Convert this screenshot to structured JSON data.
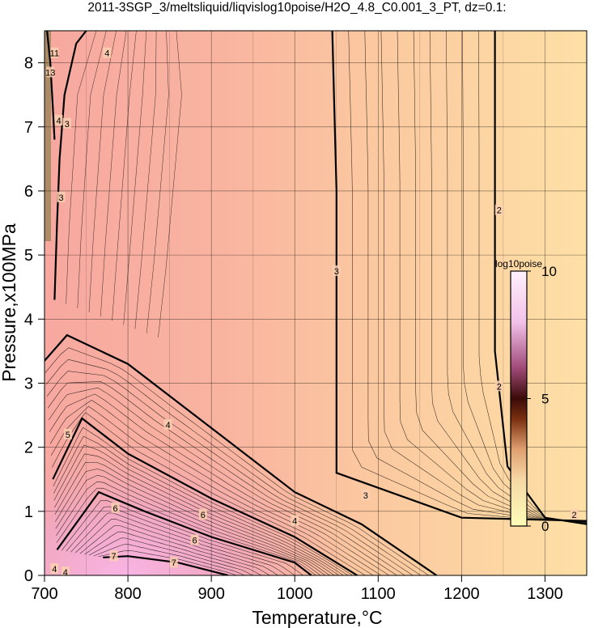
{
  "title": "2011-3SGP_3/meltsliquid/liqvislog10poise/H2O_4.8_C0.001_3_PT, dz=0.1:",
  "chart_data": {
    "type": "heatmap",
    "xlabel": "Temperature,°C",
    "ylabel": "Pressure,x100MPa",
    "xlim": [
      700,
      1350
    ],
    "ylim": [
      0,
      8.5
    ],
    "xticks": [
      700,
      800,
      900,
      1000,
      1100,
      1200,
      1300
    ],
    "yticks": [
      0,
      1,
      2,
      3,
      4,
      5,
      6,
      7,
      8
    ],
    "xtick_labels": [
      "700",
      "800",
      "900",
      "1000",
      "1100",
      "1200",
      "1300"
    ],
    "ytick_labels": [
      "0",
      "1",
      "2",
      "3",
      "4",
      "5",
      "6",
      "7",
      "8"
    ],
    "grid": true,
    "colorbar": {
      "title": "log10poise",
      "range": [
        0,
        10
      ],
      "ticks": [
        0,
        5,
        10
      ],
      "tick_labels": [
        "0",
        "5",
        "10"
      ],
      "placement": "right-inside",
      "colors": [
        "#fdfcb8",
        "#f6d9a6",
        "#e0a070",
        "#7a3010",
        "#3a0a08",
        "#a04a78",
        "#f2c2ea",
        "#fff0fc"
      ]
    },
    "contour_interval": 0.1,
    "labeled_contours": [
      {
        "level": 2,
        "points": [
          [
            1350,
            0.8
          ],
          [
            1300,
            0.9
          ],
          [
            1255,
            1.7
          ],
          [
            1240,
            3.5
          ],
          [
            1240,
            6.5
          ],
          [
            1240,
            8.5
          ]
        ]
      },
      {
        "level": 3,
        "points": [
          [
            1350,
            0.85
          ],
          [
            1200,
            0.9
          ],
          [
            1050,
            1.6
          ],
          [
            1050,
            3.5
          ],
          [
            1050,
            6.0
          ],
          [
            1045,
            8.5
          ]
        ]
      },
      {
        "level": 3,
        "points": [
          [
            712,
            4.3
          ],
          [
            715,
            5.5
          ],
          [
            718,
            6.5
          ],
          [
            724,
            7.5
          ],
          [
            738,
            8.3
          ],
          [
            750,
            8.5
          ]
        ]
      },
      {
        "level": 4,
        "points": [
          [
            700,
            3.35
          ],
          [
            727,
            3.75
          ],
          [
            800,
            3.3
          ],
          [
            900,
            2.3
          ],
          [
            1000,
            1.3
          ],
          [
            1080,
            0.8
          ],
          [
            1170,
            0.0
          ]
        ]
      },
      {
        "level": 5,
        "points": [
          [
            710,
            1.5
          ],
          [
            745,
            2.45
          ],
          [
            800,
            1.9
          ],
          [
            900,
            1.2
          ],
          [
            1000,
            0.6
          ],
          [
            1075,
            0.0
          ]
        ]
      },
      {
        "level": 6,
        "points": [
          [
            715,
            0.4
          ],
          [
            765,
            1.3
          ],
          [
            820,
            1.0
          ],
          [
            900,
            0.6
          ],
          [
            1000,
            0.2
          ],
          [
            1020,
            0.0
          ]
        ]
      },
      {
        "level": 7,
        "points": [
          [
            770,
            0.28
          ],
          [
            800,
            0.3
          ],
          [
            860,
            0.2
          ],
          [
            920,
            0.0
          ]
        ]
      },
      {
        "level": 11,
        "points": [
          [
            703,
            8.5
          ],
          [
            707,
            8.0
          ],
          [
            710,
            7.3
          ],
          [
            712,
            6.8
          ]
        ]
      }
    ],
    "contour_labels": [
      {
        "text": "2",
        "x": 1245,
        "y": 5.7
      },
      {
        "text": "2",
        "x": 1245,
        "y": 2.95
      },
      {
        "text": "2",
        "x": 1335,
        "y": 0.95
      },
      {
        "text": "3",
        "x": 1050,
        "y": 4.75
      },
      {
        "text": "3",
        "x": 1085,
        "y": 1.25
      },
      {
        "text": "3",
        "x": 727,
        "y": 7.05
      },
      {
        "text": "3",
        "x": 720,
        "y": 5.9
      },
      {
        "text": "4",
        "x": 848,
        "y": 2.35
      },
      {
        "text": "4",
        "x": 1000,
        "y": 0.85
      },
      {
        "text": "4",
        "x": 775,
        "y": 8.15
      },
      {
        "text": "5",
        "x": 728,
        "y": 2.2
      },
      {
        "text": "6",
        "x": 785,
        "y": 1.05
      },
      {
        "text": "6",
        "x": 890,
        "y": 0.95
      },
      {
        "text": "6",
        "x": 880,
        "y": 0.55
      },
      {
        "text": "7",
        "x": 783,
        "y": 0.3
      },
      {
        "text": "7",
        "x": 855,
        "y": 0.2
      },
      {
        "text": "11",
        "x": 712,
        "y": 8.15
      },
      {
        "text": "13",
        "x": 707,
        "y": 7.85
      },
      {
        "text": "4",
        "x": 717,
        "y": 7.1
      },
      {
        "text": "4",
        "x": 712,
        "y": 0.1
      },
      {
        "text": "4",
        "x": 725,
        "y": 0.05
      }
    ]
  }
}
